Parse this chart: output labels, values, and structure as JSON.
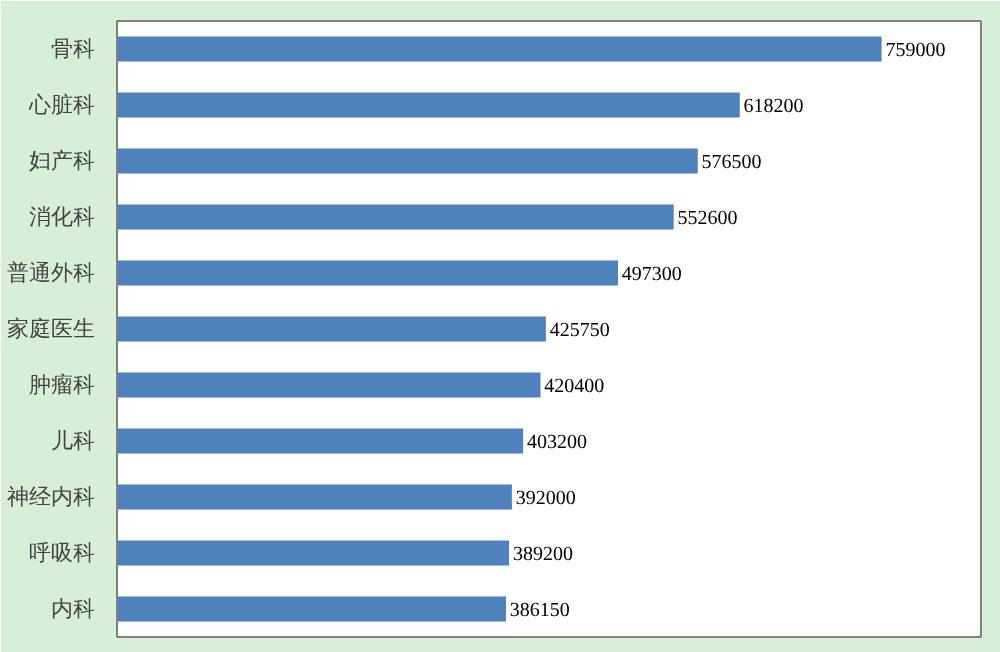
{
  "chart_data": {
    "type": "bar",
    "orientation": "horizontal",
    "data_labels": true,
    "categories": [
      "骨科",
      "心脏科",
      "妇产科",
      "消化科",
      "普通外科",
      "家庭医生",
      "肿瘤科",
      "儿科",
      "神经内科",
      "呼吸科",
      "内科"
    ],
    "values": [
      759000,
      618200,
      576500,
      552600,
      497300,
      425750,
      420400,
      403200,
      392000,
      389200,
      386150
    ],
    "color": "#4f81bd"
  }
}
